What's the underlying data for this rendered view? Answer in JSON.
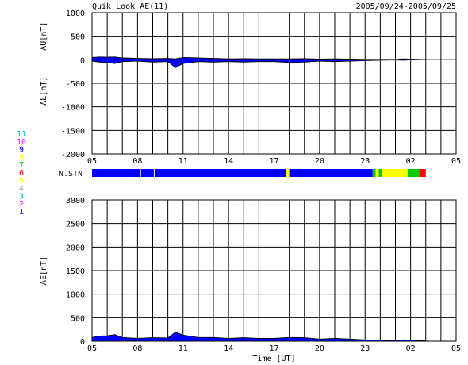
{
  "header": {
    "title": "Quik Look AE(11)",
    "date_range": "2005/09/24-2005/09/25"
  },
  "colors": {
    "main": "#0000ff",
    "neutral": "#000000",
    "station": {
      "1": "#0000ff",
      "2": "#ff00ff",
      "3": "#00aaaa",
      "4": "#aaaaaa",
      "5": "#ffff00",
      "6": "#ff0000",
      "7": "#00cc00",
      "8": "#ffff00",
      "9": "#0000ff",
      "10": "#ff00ff",
      "11": "#00cccc"
    }
  },
  "station_legend": [
    "11",
    "10",
    "9",
    "8",
    "7",
    "6",
    "5",
    "4",
    "3",
    "2",
    "1"
  ],
  "chart_data": [
    {
      "type": "area",
      "title": "Quik Look AE(11)",
      "subtitle": "2005/09/24-2005/09/25",
      "ylabel_upper": "AU[nT]",
      "ylabel_lower": "AL[nT]",
      "ylim": [
        -2000,
        1000
      ],
      "yticks": [
        1000,
        500,
        0,
        -500,
        -1000,
        -1500,
        -2000
      ],
      "xlim": [
        5,
        29
      ],
      "xticks": [
        "05",
        "08",
        "11",
        "14",
        "17",
        "20",
        "23",
        "02",
        "05"
      ],
      "grid": true,
      "series": [
        {
          "name": "AU",
          "x": [
            5,
            5.5,
            6,
            6.5,
            7,
            8,
            9,
            10,
            10.5,
            11,
            12,
            13,
            14,
            15,
            16,
            17,
            18,
            19,
            20,
            21,
            22,
            23,
            24,
            25,
            25.5,
            26,
            27
          ],
          "y": [
            50,
            60,
            55,
            60,
            40,
            30,
            25,
            30,
            20,
            50,
            40,
            30,
            20,
            25,
            20,
            20,
            20,
            25,
            15,
            20,
            15,
            10,
            10,
            10,
            20,
            15,
            5
          ]
        },
        {
          "name": "AL",
          "x": [
            5,
            5.5,
            6,
            6.5,
            7,
            8,
            9,
            10,
            10.5,
            11,
            12,
            13,
            14,
            15,
            16,
            17,
            18,
            19,
            20,
            21,
            22,
            23,
            24,
            25,
            25.5,
            26,
            27
          ],
          "y": [
            -30,
            -50,
            -60,
            -80,
            -40,
            -30,
            -50,
            -40,
            -170,
            -80,
            -40,
            -50,
            -40,
            -50,
            -40,
            -40,
            -60,
            -50,
            -30,
            -40,
            -30,
            -20,
            -10,
            -5,
            -10,
            -5,
            -5
          ]
        }
      ],
      "station_bar": {
        "label": "N.STN",
        "segments": [
          {
            "start": 5,
            "end": 8.2,
            "station": "9"
          },
          {
            "start": 8.2,
            "end": 9.1,
            "station": "9"
          },
          {
            "start": 9.1,
            "end": 17.8,
            "station": "9"
          },
          {
            "start": 17.8,
            "end": 18.0,
            "station": "8"
          },
          {
            "start": 18.0,
            "end": 23.5,
            "station": "9"
          },
          {
            "start": 23.5,
            "end": 23.7,
            "station": "7"
          },
          {
            "start": 23.7,
            "end": 23.9,
            "station": "8"
          },
          {
            "start": 23.9,
            "end": 24.1,
            "station": "7"
          },
          {
            "start": 24.1,
            "end": 25.8,
            "station": "8"
          },
          {
            "start": 25.8,
            "end": 26.0,
            "station": "7"
          },
          {
            "start": 26.0,
            "end": 26.6,
            "station": "7"
          },
          {
            "start": 26.6,
            "end": 26.8,
            "station": "6"
          },
          {
            "start": 26.8,
            "end": 27.0,
            "station": "6"
          }
        ]
      }
    },
    {
      "type": "area",
      "ylabel": "AE[nT]",
      "xlabel": "Time [UT]",
      "ylim": [
        0,
        3000
      ],
      "yticks": [
        3000,
        2500,
        2000,
        1500,
        1000,
        500,
        0
      ],
      "xlim": [
        5,
        29
      ],
      "xticks": [
        "05",
        "08",
        "11",
        "14",
        "17",
        "20",
        "23",
        "02",
        "05"
      ],
      "grid": true,
      "series": [
        {
          "name": "AE",
          "x": [
            5,
            5.5,
            6,
            6.5,
            7,
            8,
            9,
            10,
            10.5,
            11,
            12,
            13,
            14,
            15,
            16,
            17,
            18,
            19,
            20,
            21,
            22,
            23,
            24,
            25,
            25.5,
            26,
            27
          ],
          "y": [
            80,
            110,
            115,
            140,
            80,
            60,
            75,
            70,
            190,
            130,
            80,
            80,
            60,
            75,
            60,
            60,
            80,
            75,
            45,
            60,
            45,
            30,
            20,
            15,
            30,
            20,
            10
          ]
        }
      ]
    }
  ]
}
